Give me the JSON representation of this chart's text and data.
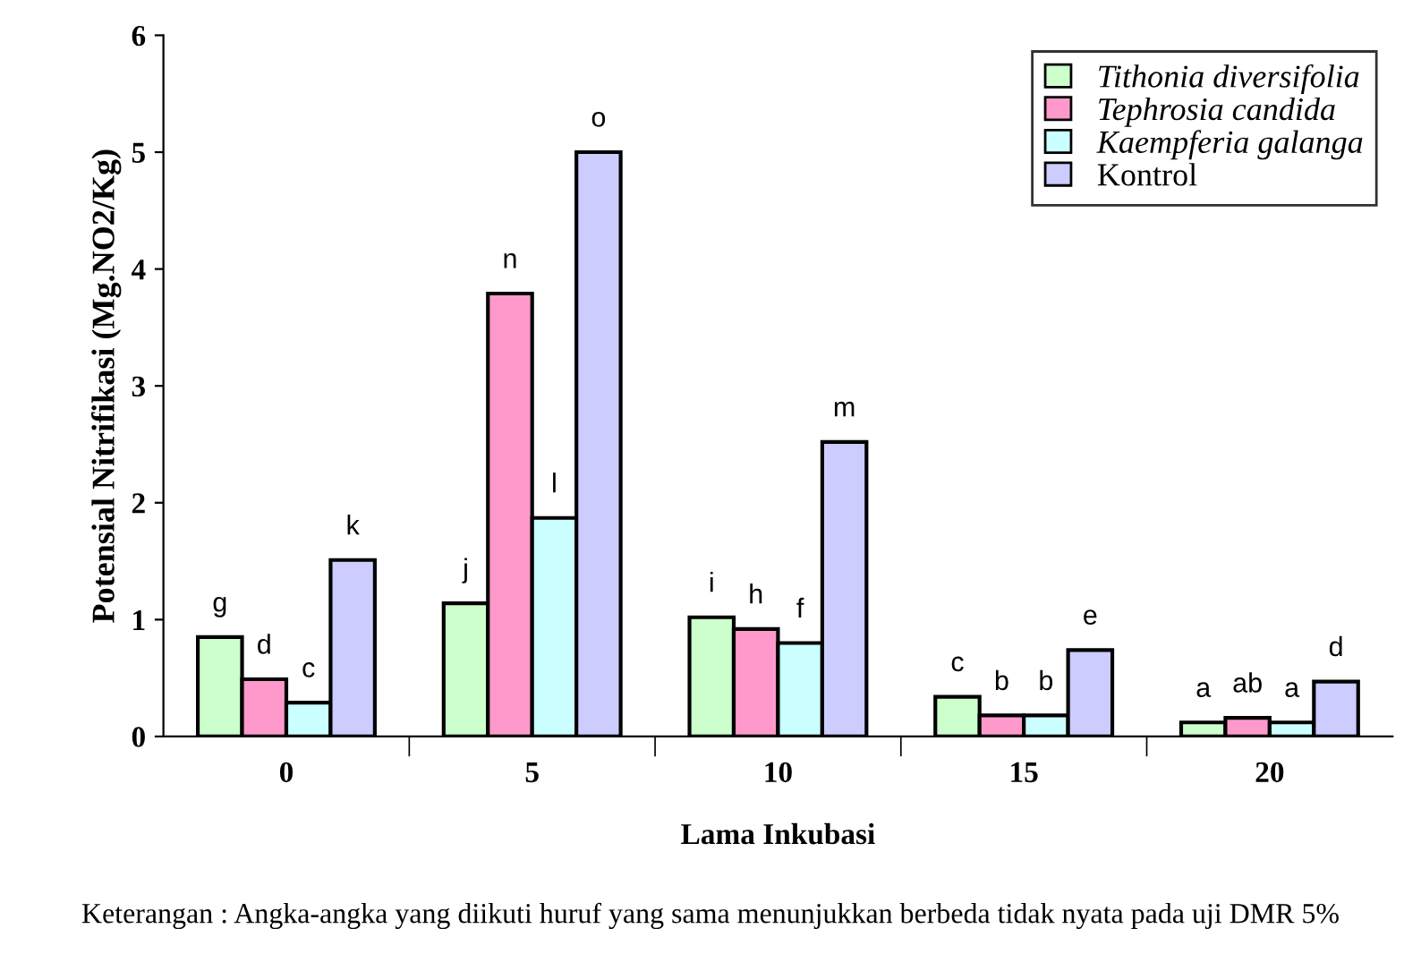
{
  "chart_data": {
    "type": "bar",
    "xlabel": "Lama Inkubasi",
    "ylabel": "Potensial Nitrifikasi (Mg.NO2/Kg)",
    "categories": [
      "0",
      "5",
      "10",
      "15",
      "20"
    ],
    "series": [
      {
        "name": "Tithonia diversifolia",
        "color": "#ccffcc",
        "values": [
          0.85,
          1.14,
          1.02,
          0.34,
          0.12
        ],
        "value_labels": [
          "g",
          "j",
          "i",
          "c",
          "a"
        ]
      },
      {
        "name": "Tephrosia candida",
        "color": "#ff99cc",
        "values": [
          0.49,
          3.79,
          0.92,
          0.18,
          0.16
        ],
        "value_labels": [
          "d",
          "n",
          "h",
          "b",
          "ab"
        ]
      },
      {
        "name": "Kaempferia galanga",
        "color": "#ccffff",
        "values": [
          0.29,
          1.87,
          0.8,
          0.18,
          0.12
        ],
        "value_labels": [
          "c",
          "l",
          "f",
          "b",
          "a"
        ]
      },
      {
        "name": "Kontrol",
        "color": "#ccccff",
        "values": [
          1.51,
          5.0,
          2.52,
          0.74,
          0.47
        ],
        "value_labels": [
          "k",
          "o",
          "m",
          "e",
          "d"
        ]
      }
    ],
    "ylim": [
      0,
      6
    ],
    "yticks": [
      0,
      1,
      2,
      3,
      4,
      5,
      6
    ],
    "grid": false,
    "legend": "top right",
    "annotations": [
      "Keterangan : Angka-angka yang diikuti huruf yang sama menunjukkan berbeda tidak nyata pada uji DMR 5%"
    ]
  }
}
